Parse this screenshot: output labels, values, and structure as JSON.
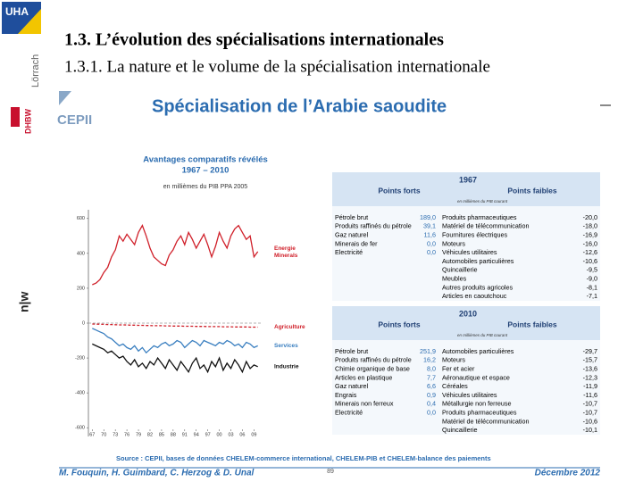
{
  "header": {
    "title": "1.3. L’évolution des spécialisations internationales",
    "subtitle": "1.3.1. La nature et le volume de la spécialisation internationale"
  },
  "logos": {
    "uha": "UHA",
    "lorrach": "Lörrach",
    "dhbw": "DHBW",
    "nw": "n|w",
    "cepii": "CEPII"
  },
  "slide_title": "Spécialisation de l’Arabie saoudite",
  "chart_data": {
    "type": "line",
    "title": "Avantages comparatifs révélés",
    "period": "1967 – 2010",
    "subtitle": "en millièmes du PIB PPA 2005",
    "x": [
      1967,
      1968,
      1969,
      1970,
      1971,
      1972,
      1973,
      1974,
      1975,
      1976,
      1977,
      1978,
      1979,
      1980,
      1981,
      1982,
      1983,
      1984,
      1985,
      1986,
      1987,
      1988,
      1989,
      1990,
      1991,
      1992,
      1993,
      1994,
      1995,
      1996,
      1997,
      1998,
      1999,
      2000,
      2001,
      2002,
      2003,
      2004,
      2005,
      2006,
      2007,
      2008,
      2009,
      2010
    ],
    "series": [
      {
        "name": "Energie Minerals",
        "color": "#d0202a",
        "dashed": false,
        "values": [
          220,
          230,
          250,
          290,
          320,
          380,
          420,
          500,
          470,
          510,
          480,
          450,
          520,
          560,
          500,
          430,
          380,
          360,
          340,
          330,
          390,
          420,
          470,
          500,
          450,
          520,
          480,
          430,
          470,
          510,
          450,
          380,
          440,
          520,
          470,
          430,
          500,
          540,
          560,
          520,
          480,
          500,
          380,
          410
        ]
      },
      {
        "name": "Agriculture",
        "color": "#d0202a",
        "dashed": true,
        "values": [
          -5,
          -6,
          -6,
          -7,
          -8,
          -8,
          -9,
          -10,
          -10,
          -11,
          -12,
          -12,
          -13,
          -13,
          -14,
          -14,
          -15,
          -15,
          -15,
          -16,
          -16,
          -17,
          -17,
          -17,
          -18,
          -18,
          -18,
          -19,
          -19,
          -19,
          -20,
          -20,
          -20,
          -20,
          -21,
          -21,
          -21,
          -22,
          -22,
          -22,
          -22,
          -23,
          -23,
          -23
        ]
      },
      {
        "name": "Services",
        "color": "#3a7fc0",
        "dashed": false,
        "values": [
          -30,
          -40,
          -50,
          -60,
          -80,
          -90,
          -110,
          -130,
          -120,
          -140,
          -150,
          -130,
          -160,
          -140,
          -170,
          -150,
          -130,
          -140,
          -120,
          -110,
          -130,
          -120,
          -100,
          -110,
          -140,
          -120,
          -100,
          -110,
          -130,
          -100,
          -110,
          -120,
          -130,
          -110,
          -120,
          -100,
          -110,
          -130,
          -120,
          -140,
          -110,
          -120,
          -140,
          -130
        ]
      },
      {
        "name": "Industrie",
        "color": "#111111",
        "dashed": false,
        "values": [
          -120,
          -130,
          -140,
          -150,
          -170,
          -160,
          -180,
          -200,
          -190,
          -220,
          -240,
          -210,
          -250,
          -230,
          -260,
          -220,
          -240,
          -200,
          -230,
          -260,
          -210,
          -240,
          -270,
          -220,
          -250,
          -280,
          -230,
          -200,
          -260,
          -240,
          -280,
          -220,
          -250,
          -200,
          -270,
          -230,
          -260,
          -210,
          -240,
          -280,
          -220,
          -260,
          -240,
          -250
        ]
      }
    ],
    "xlim": [
      1966,
      2011
    ],
    "xticks": [
      {
        "value": 1967,
        "label": "67"
      },
      {
        "value": 1970,
        "label": "70"
      },
      {
        "value": 1973,
        "label": "73"
      },
      {
        "value": 1976,
        "label": "76"
      },
      {
        "value": 1979,
        "label": "79"
      },
      {
        "value": 1982,
        "label": "82"
      },
      {
        "value": 1985,
        "label": "85"
      },
      {
        "value": 1988,
        "label": "88"
      },
      {
        "value": 1991,
        "label": "91"
      },
      {
        "value": 1994,
        "label": "94"
      },
      {
        "value": 1997,
        "label": "97"
      },
      {
        "value": 2000,
        "label": "00"
      },
      {
        "value": 2003,
        "label": "03"
      },
      {
        "value": 2006,
        "label": "06"
      },
      {
        "value": 2009,
        "label": "09"
      }
    ],
    "ylim": [
      -650,
      650
    ],
    "yticks": [
      600,
      400,
      200,
      0,
      -200,
      -400,
      -600
    ]
  },
  "tables": [
    {
      "year": "1967",
      "strong_header": "Points forts",
      "weak_header": "Points faibles",
      "unit": "en millièmes du PIB courant",
      "strong": [
        [
          "Pétrole brut",
          "189,0"
        ],
        [
          "Produits raffinés du pétrole",
          "39,1"
        ],
        [
          "Gaz naturel",
          "11,6"
        ],
        [
          "Minerais de fer",
          "0,0"
        ],
        [
          "Electricité",
          "0,0"
        ]
      ],
      "weak": [
        [
          "Produits pharmaceutiques",
          "-20,0"
        ],
        [
          "Matériel de télécommunication",
          "-18,0"
        ],
        [
          "Fournitures électriques",
          "-16,9"
        ],
        [
          "Moteurs",
          "-16,0"
        ],
        [
          "Véhicules utilitaires",
          "-12,6"
        ],
        [
          "Automobiles particulières",
          "-10,6"
        ],
        [
          "Quincaillerie",
          "-9,5"
        ],
        [
          "Meubles",
          "-9,0"
        ],
        [
          "Autres produits agricoles",
          "-8,1"
        ],
        [
          "Articles en caoutchouc",
          "-7,1"
        ]
      ]
    },
    {
      "year": "2010",
      "strong_header": "Points forts",
      "weak_header": "Points faibles",
      "unit": "en millièmes du PIB courant",
      "strong": [
        [
          "Pétrole brut",
          "251,9"
        ],
        [
          "Produits raffinés du pétrole",
          "16,2"
        ],
        [
          "Chimie organique de base",
          "8,0"
        ],
        [
          "Articles en plastique",
          "7,7"
        ],
        [
          "Gaz naturel",
          "6,6"
        ],
        [
          "Engrais",
          "0,9"
        ],
        [
          "Minerais non ferreux",
          "0,4"
        ],
        [
          "Electricité",
          "0,0"
        ]
      ],
      "weak": [
        [
          "Automobiles particulières",
          "-29,7"
        ],
        [
          "Moteurs",
          "-15,7"
        ],
        [
          "Fer et acier",
          "-13,6"
        ],
        [
          "Aéronautique et espace",
          "-12,3"
        ],
        [
          "Céréales",
          "-11,9"
        ],
        [
          "Véhicules utilitaires",
          "-11,6"
        ],
        [
          "Métallurgie non ferreuse",
          "-10,7"
        ],
        [
          "Produits pharmaceutiques",
          "-10,7"
        ],
        [
          "Matériel de télécommunication",
          "-10,6"
        ],
        [
          "Quincaillerie",
          "-10,1"
        ]
      ]
    }
  ],
  "source": "Source : CEPII, bases de données CHELEM-commerce international, CHELEM-PIB et CHELEM-balance des paiements",
  "footer": {
    "authors": "M. Fouquin, H. Guimbard, C. Herzog & D. Ünal",
    "page": "89",
    "date": "Décembre 2012"
  }
}
